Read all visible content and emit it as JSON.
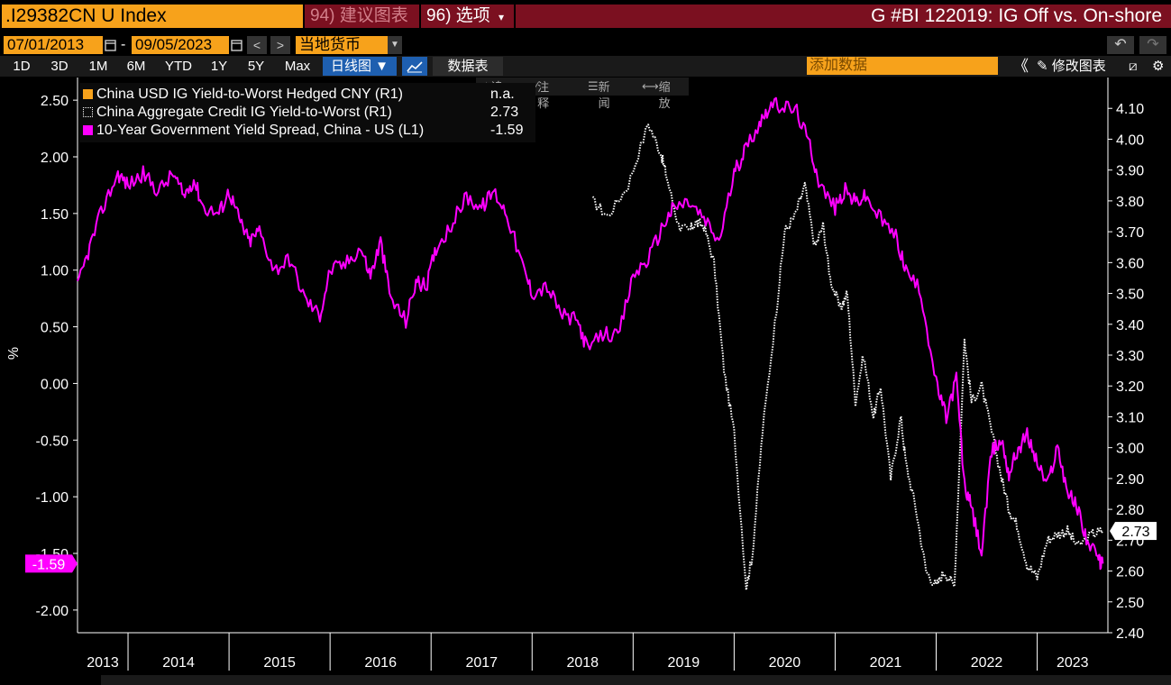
{
  "header": {
    "ticker": ".I29382CN U Index",
    "suggest_label": "94) 建议图表",
    "options_label": "96) 选项",
    "options_caret": "▾",
    "chart_title": "G #BI 122019: IG Off vs. On-shore"
  },
  "dates": {
    "start": "07/01/2013",
    "sep": "-",
    "end": "09/05/2023",
    "currency": "当地货币"
  },
  "toolbar": {
    "periods": [
      "1D",
      "3D",
      "1M",
      "6M",
      "YTD",
      "1Y",
      "5Y",
      "Max"
    ],
    "chart_type": "日线图 ▼",
    "data_table": "数据表",
    "add_data_placeholder": "添加数据",
    "edit_chart": "修改图表",
    "undo": "↶",
    "redo": "↷",
    "collapse": "《",
    "nav_prev": "<",
    "nav_next": ">"
  },
  "subtools": {
    "track": "追踪",
    "annotate": "注释",
    "news": "新闻",
    "zoom": "缩放"
  },
  "colors": {
    "orange": "#f7a21b",
    "magenta": "#ff00ff",
    "white_dotted": "#ffffff",
    "bg": "#000000",
    "panel_red": "#7b1020"
  },
  "chart_data": {
    "type": "line",
    "title": "G #BI 122019: IG Off vs. On-shore",
    "series": [
      {
        "name": "China USD IG Yield-to-Worst Hedged CNY (R1)",
        "axis": "right",
        "last_value": "n.a.",
        "values": []
      },
      {
        "name": "China Aggregate Credit IG Yield-to-Worst (R1)",
        "axis": "right",
        "last_value": "2.73",
        "x": [
          2018.6,
          2018.75,
          2018.95,
          2019.15,
          2019.28,
          2019.33,
          2019.45,
          2019.55,
          2019.62,
          2019.7,
          2019.8,
          2019.9,
          2020.0,
          2020.12,
          2020.18,
          2020.28,
          2020.42,
          2020.5,
          2020.6,
          2020.7,
          2020.8,
          2020.88,
          2020.95,
          2021.05,
          2021.12,
          2021.2,
          2021.28,
          2021.38,
          2021.45,
          2021.55,
          2021.65,
          2021.7,
          2021.8,
          2021.9,
          2022.0,
          2022.08,
          2022.18,
          2022.28,
          2022.35,
          2022.45,
          2022.55,
          2022.65,
          2022.72,
          2022.8,
          2022.9,
          2023.0,
          2023.1,
          2023.2,
          2023.3,
          2023.4,
          2023.55,
          2023.65
        ],
        "values": [
          3.8,
          3.75,
          3.85,
          4.05,
          3.95,
          3.88,
          3.72,
          3.7,
          3.73,
          3.72,
          3.6,
          3.25,
          3.05,
          2.55,
          2.65,
          3.05,
          3.45,
          3.7,
          3.75,
          3.85,
          3.65,
          3.72,
          3.55,
          3.45,
          3.5,
          3.15,
          3.3,
          3.1,
          3.2,
          2.9,
          3.1,
          2.95,
          2.8,
          2.6,
          2.55,
          2.6,
          2.55,
          3.35,
          3.15,
          3.2,
          3.05,
          2.9,
          2.8,
          2.75,
          2.62,
          2.58,
          2.7,
          2.72,
          2.73,
          2.68,
          2.72,
          2.73
        ]
      },
      {
        "name": "10-Year Government Yield Spread, China - US (L1)",
        "axis": "left",
        "last_value": "-1.59",
        "x": [
          2013.5,
          2013.62,
          2013.75,
          2013.9,
          2014.0,
          2014.15,
          2014.3,
          2014.45,
          2014.55,
          2014.65,
          2014.75,
          2014.9,
          2015.0,
          2015.1,
          2015.2,
          2015.3,
          2015.45,
          2015.6,
          2015.75,
          2015.9,
          2016.0,
          2016.15,
          2016.3,
          2016.4,
          2016.5,
          2016.6,
          2016.75,
          2016.85,
          2016.95,
          2017.05,
          2017.2,
          2017.35,
          2017.5,
          2017.62,
          2017.75,
          2017.9,
          2018.0,
          2018.15,
          2018.3,
          2018.45,
          2018.55,
          2018.72,
          2018.85,
          2019.0,
          2019.15,
          2019.3,
          2019.4,
          2019.55,
          2019.7,
          2019.85,
          2020.0,
          2020.1,
          2020.25,
          2020.35,
          2020.48,
          2020.62,
          2020.75,
          2020.85,
          2021.0,
          2021.1,
          2021.2,
          2021.3,
          2021.45,
          2021.6,
          2021.7,
          2021.85,
          2022.0,
          2022.1,
          2022.2,
          2022.28,
          2022.35,
          2022.45,
          2022.55,
          2022.65,
          2022.72,
          2022.8,
          2022.9,
          2023.0,
          2023.1,
          2023.2,
          2023.3,
          2023.4,
          2023.5,
          2023.6,
          2023.65
        ],
        "values": [
          0.85,
          1.2,
          1.55,
          1.85,
          1.75,
          1.85,
          1.7,
          1.85,
          1.65,
          1.8,
          1.55,
          1.5,
          1.7,
          1.45,
          1.25,
          1.35,
          1.0,
          1.1,
          0.75,
          0.6,
          1.0,
          1.05,
          1.2,
          0.95,
          1.25,
          0.75,
          0.55,
          0.9,
          0.85,
          1.2,
          1.4,
          1.65,
          1.55,
          1.7,
          1.5,
          1.05,
          0.8,
          0.85,
          0.6,
          0.55,
          0.3,
          0.45,
          0.4,
          0.95,
          1.1,
          1.4,
          1.55,
          1.6,
          1.45,
          1.25,
          1.85,
          2.05,
          2.3,
          2.45,
          2.45,
          2.4,
          2.1,
          1.75,
          1.55,
          1.7,
          1.6,
          1.65,
          1.45,
          1.3,
          1.0,
          0.8,
          0.0,
          -0.3,
          0.05,
          -0.9,
          -1.1,
          -1.5,
          -0.6,
          -0.5,
          -0.8,
          -0.6,
          -0.45,
          -0.7,
          -0.9,
          -0.55,
          -0.95,
          -1.1,
          -1.4,
          -1.55,
          -1.59
        ]
      }
    ],
    "x_ticks": [
      "2013",
      "2014",
      "2015",
      "2016",
      "2017",
      "2018",
      "2019",
      "2020",
      "2021",
      "2022",
      "2023"
    ],
    "xlim": [
      2013.5,
      2023.7
    ],
    "ylabel_left": "%",
    "ylim_left": [
      -2.2,
      2.7
    ],
    "yticks_left": [
      "2.50",
      "2.00",
      "1.50",
      "1.00",
      "0.50",
      "0.00",
      "-0.50",
      "-1.00",
      "-1.50",
      "-2.00"
    ],
    "ylim_right": [
      2.4,
      4.2
    ],
    "yticks_right": [
      "4.10",
      "4.00",
      "3.90",
      "3.80",
      "3.70",
      "3.60",
      "3.50",
      "3.40",
      "3.30",
      "3.20",
      "3.10",
      "3.00",
      "2.90",
      "2.80",
      "2.70",
      "2.60",
      "2.50",
      "2.40"
    ],
    "last_label_left": "-1.59",
    "last_label_right": "2.73",
    "legend": "top-left"
  }
}
